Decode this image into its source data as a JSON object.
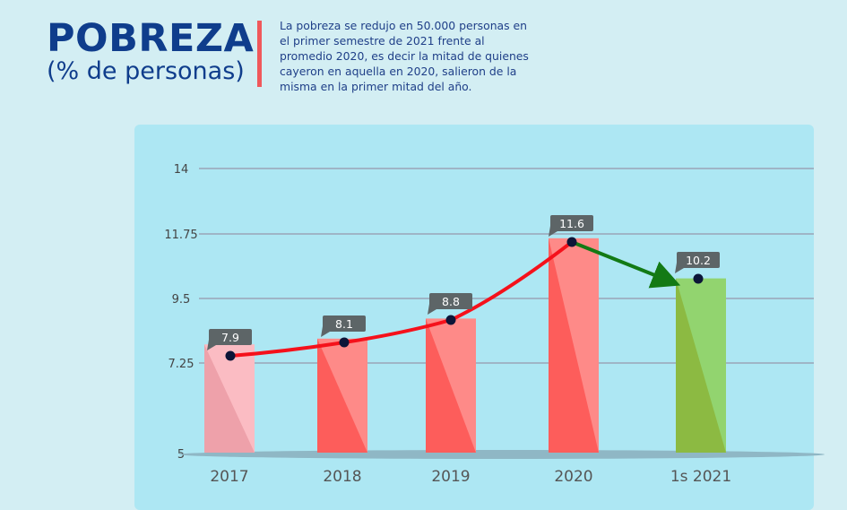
{
  "header": {
    "title": "POBREZA",
    "subtitle": "(% de personas)",
    "description": "La pobreza se redujo en 50.000 personas en el primer semestre de 2021 frente al promedio 2020, es decir la mitad de quienes cayeron en aquella en 2020, salieron de la misma en la primer mitad del año."
  },
  "chart_data": {
    "type": "bar",
    "title": "POBREZA (% de personas)",
    "categories": [
      "2017",
      "2018",
      "2019",
      "2020",
      "1s 2021"
    ],
    "values": [
      7.9,
      8.1,
      8.8,
      11.6,
      10.2
    ],
    "data_labels": [
      "7.9",
      "8.1",
      "8.8",
      "11.6",
      "10.2"
    ],
    "yticks": [
      5,
      7.25,
      9.5,
      11.75,
      14
    ],
    "ytick_labels": [
      "5",
      "7.25",
      "9.5",
      "11.75",
      "14"
    ],
    "ylim": [
      5,
      14
    ],
    "grid": true,
    "line_overlay": {
      "rising_segment": [
        "2017",
        "2020"
      ],
      "falling_segment": [
        "2020",
        "1s 2021"
      ]
    },
    "colors": {
      "light_bar": "#fbbcc3",
      "red_bar": "#fe8a88",
      "red_bar_shade": "#fd5d5b",
      "green_bar": "#92d46f",
      "green_bar_shade": "#8cba42",
      "rising_line": "#f5111b",
      "falling_line": "#137a15",
      "dot": "#0c1538",
      "label_box": "#5d6567"
    }
  }
}
